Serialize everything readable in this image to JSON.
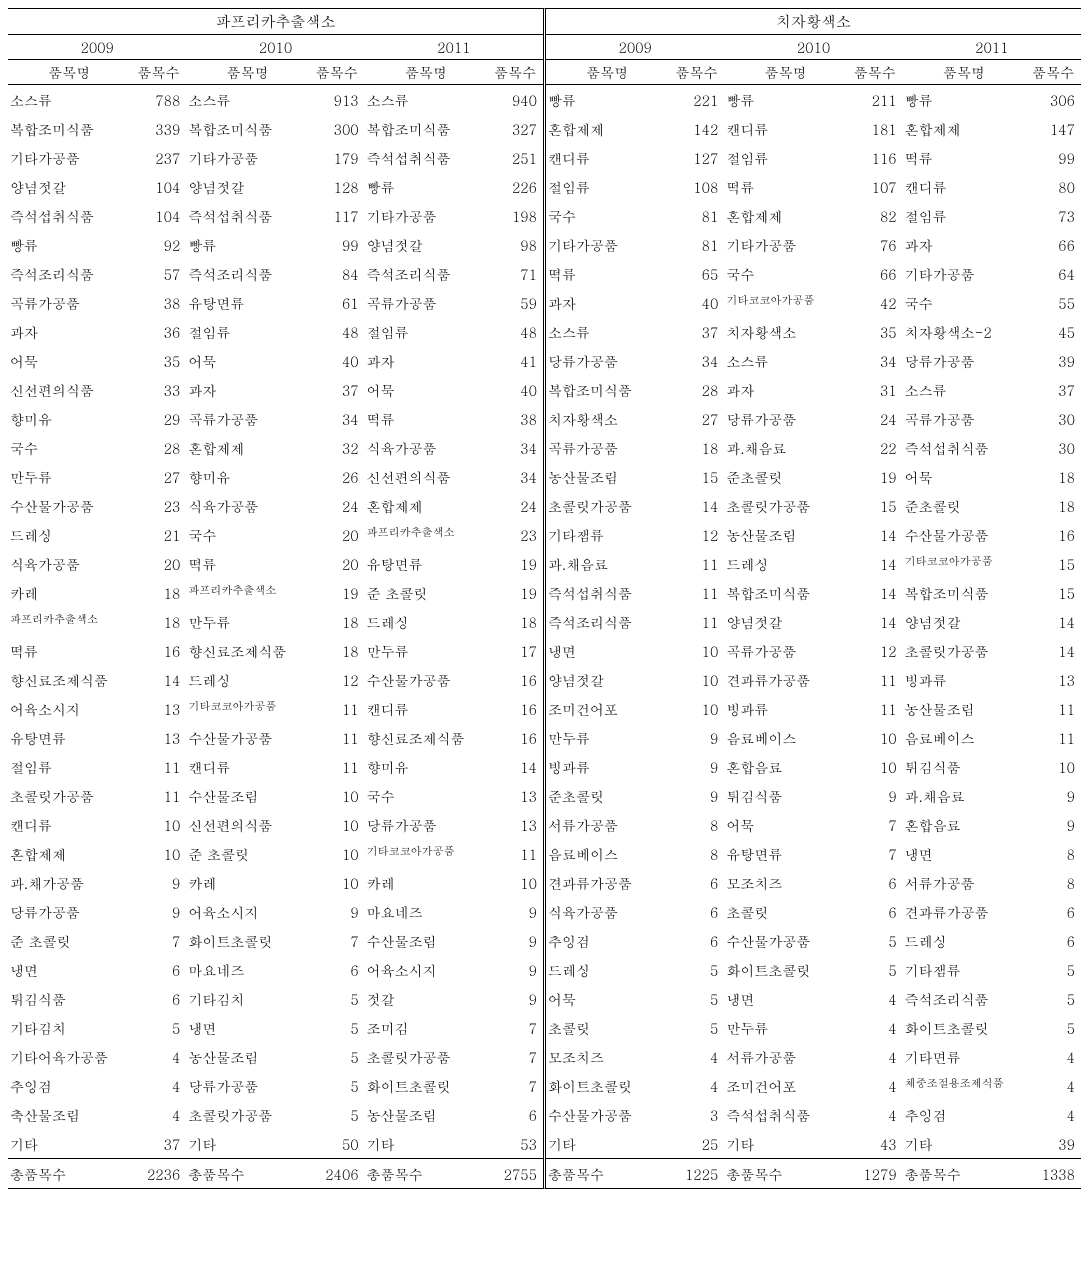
{
  "sections": [
    {
      "title": "파프리카추출색소",
      "years": [
        "2009",
        "2010",
        "2011"
      ],
      "column_headers": {
        "name": "품목명",
        "count": "품목수"
      },
      "rows": [
        [
          {
            "name": "소스류",
            "count": 788
          },
          {
            "name": "소스류",
            "count": 913
          },
          {
            "name": "소스류",
            "count": 940
          }
        ],
        [
          {
            "name": "복합조미식품",
            "count": 339
          },
          {
            "name": "복합조미식품",
            "count": 300
          },
          {
            "name": "복합조미식품",
            "count": 327
          }
        ],
        [
          {
            "name": "기타가공품",
            "count": 237
          },
          {
            "name": "기타가공품",
            "count": 179
          },
          {
            "name": "즉석섭취식품",
            "count": 251
          }
        ],
        [
          {
            "name": "양념젓갈",
            "count": 104
          },
          {
            "name": "양념젓갈",
            "count": 128
          },
          {
            "name": "빵류",
            "count": 226
          }
        ],
        [
          {
            "name": "즉석섭취식품",
            "count": 104
          },
          {
            "name": "즉석섭취식품",
            "count": 117
          },
          {
            "name": "기타가공품",
            "count": 198
          }
        ],
        [
          {
            "name": "빵류",
            "count": 92
          },
          {
            "name": "빵류",
            "count": 99
          },
          {
            "name": "양념젓갈",
            "count": 98
          }
        ],
        [
          {
            "name": "즉석조리식품",
            "count": 57
          },
          {
            "name": "즉석조리식품",
            "count": 84
          },
          {
            "name": "즉석조리식품",
            "count": 71
          }
        ],
        [
          {
            "name": "곡류가공품",
            "count": 38
          },
          {
            "name": "유탕면류",
            "count": 61
          },
          {
            "name": "곡류가공품",
            "count": 59
          }
        ],
        [
          {
            "name": "과자",
            "count": 36
          },
          {
            "name": "절임류",
            "count": 48
          },
          {
            "name": "절임류",
            "count": 48
          }
        ],
        [
          {
            "name": "어묵",
            "count": 35
          },
          {
            "name": "어묵",
            "count": 40
          },
          {
            "name": "과자",
            "count": 41
          }
        ],
        [
          {
            "name": "신선편의식품",
            "count": 33
          },
          {
            "name": "과자",
            "count": 37
          },
          {
            "name": "어묵",
            "count": 40
          }
        ],
        [
          {
            "name": "향미유",
            "count": 29
          },
          {
            "name": "곡류가공품",
            "count": 34
          },
          {
            "name": "떡류",
            "count": 38
          }
        ],
        [
          {
            "name": "국수",
            "count": 28
          },
          {
            "name": "혼합제제",
            "count": 32
          },
          {
            "name": "식육가공품",
            "count": 34
          }
        ],
        [
          {
            "name": "만두류",
            "count": 27
          },
          {
            "name": "향미유",
            "count": 26
          },
          {
            "name": "신선편의식품",
            "count": 34
          }
        ],
        [
          {
            "name": "수산물가공품",
            "count": 23
          },
          {
            "name": "식육가공품",
            "count": 24
          },
          {
            "name": "혼합제제",
            "count": 24
          }
        ],
        [
          {
            "name": "드레싱",
            "count": 21
          },
          {
            "name": "국수",
            "count": 20
          },
          {
            "name": "파프리카추출색소",
            "count": 23,
            "small": true
          }
        ],
        [
          {
            "name": "식육가공품",
            "count": 20
          },
          {
            "name": "떡류",
            "count": 20
          },
          {
            "name": "유탕면류",
            "count": 19
          }
        ],
        [
          {
            "name": "카레",
            "count": 18
          },
          {
            "name": "파프리카추출색소",
            "count": 19,
            "small": true
          },
          {
            "name": "준 초콜릿",
            "count": 19
          }
        ],
        [
          {
            "name": "파프리카추출색소",
            "count": 18,
            "small": true
          },
          {
            "name": "만두류",
            "count": 18
          },
          {
            "name": "드레싱",
            "count": 18
          }
        ],
        [
          {
            "name": "떡류",
            "count": 16
          },
          {
            "name": "향신료조제식품",
            "count": 18
          },
          {
            "name": "만두류",
            "count": 17
          }
        ],
        [
          {
            "name": "향신료조제식품",
            "count": 14
          },
          {
            "name": "드레싱",
            "count": 12
          },
          {
            "name": "수산물가공품",
            "count": 16
          }
        ],
        [
          {
            "name": "어육소시지",
            "count": 13
          },
          {
            "name": "기타코코아가공품",
            "count": 11,
            "small": true
          },
          {
            "name": "캔디류",
            "count": 16
          }
        ],
        [
          {
            "name": "유탕면류",
            "count": 13
          },
          {
            "name": "수산물가공품",
            "count": 11
          },
          {
            "name": "향신료조제식품",
            "count": 16
          }
        ],
        [
          {
            "name": "절임류",
            "count": 11
          },
          {
            "name": "캔디류",
            "count": 11
          },
          {
            "name": "향미유",
            "count": 14
          }
        ],
        [
          {
            "name": "초콜릿가공품",
            "count": 11
          },
          {
            "name": "수산물조림",
            "count": 10
          },
          {
            "name": "국수",
            "count": 13
          }
        ],
        [
          {
            "name": "캔디류",
            "count": 10
          },
          {
            "name": "신선편의식품",
            "count": 10
          },
          {
            "name": "당류가공품",
            "count": 13
          }
        ],
        [
          {
            "name": "혼합제제",
            "count": 10
          },
          {
            "name": "준 초콜릿",
            "count": 10
          },
          {
            "name": "기타코코아가공품",
            "count": 11,
            "small": true
          }
        ],
        [
          {
            "name": "과.채가공품",
            "count": 9
          },
          {
            "name": "카레",
            "count": 10
          },
          {
            "name": "카레",
            "count": 10
          }
        ],
        [
          {
            "name": "당류가공품",
            "count": 9
          },
          {
            "name": "어육소시지",
            "count": 9
          },
          {
            "name": "마요네즈",
            "count": 9
          }
        ],
        [
          {
            "name": "준 초콜릿",
            "count": 7
          },
          {
            "name": "화이트초콜릿",
            "count": 7
          },
          {
            "name": "수산물조림",
            "count": 9
          }
        ],
        [
          {
            "name": "냉면",
            "count": 6
          },
          {
            "name": "마요네즈",
            "count": 6
          },
          {
            "name": "어육소시지",
            "count": 9
          }
        ],
        [
          {
            "name": "튀김식품",
            "count": 6
          },
          {
            "name": "기타김치",
            "count": 5
          },
          {
            "name": "젓갈",
            "count": 9
          }
        ],
        [
          {
            "name": "기타김치",
            "count": 5
          },
          {
            "name": "냉면",
            "count": 5
          },
          {
            "name": "조미김",
            "count": 7
          }
        ],
        [
          {
            "name": "기타어육가공품",
            "count": 4
          },
          {
            "name": "농산물조림",
            "count": 5
          },
          {
            "name": "초콜릿가공품",
            "count": 7
          }
        ],
        [
          {
            "name": "추잉검",
            "count": 4
          },
          {
            "name": "당류가공품",
            "count": 5
          },
          {
            "name": "화이트초콜릿",
            "count": 7
          }
        ],
        [
          {
            "name": "축산물조림",
            "count": 4
          },
          {
            "name": "초콜릿가공품",
            "count": 5
          },
          {
            "name": "농산물조림",
            "count": 6
          }
        ],
        [
          {
            "name": "기타",
            "count": 37
          },
          {
            "name": "기타",
            "count": 50
          },
          {
            "name": "기타",
            "count": 53
          }
        ]
      ],
      "total": [
        {
          "name": "총품목수",
          "count": 2236
        },
        {
          "name": "총품목수",
          "count": 2406
        },
        {
          "name": "총품목수",
          "count": 2755
        }
      ]
    },
    {
      "title": "치자황색소",
      "years": [
        "2009",
        "2010",
        "2011"
      ],
      "column_headers": {
        "name": "품목명",
        "count": "품목수"
      },
      "rows": [
        [
          {
            "name": "빵류",
            "count": 221
          },
          {
            "name": "빵류",
            "count": 211
          },
          {
            "name": "빵류",
            "count": 306
          }
        ],
        [
          {
            "name": "혼합제제",
            "count": 142
          },
          {
            "name": "캔디류",
            "count": 181
          },
          {
            "name": "혼합제제",
            "count": 147
          }
        ],
        [
          {
            "name": "캔디류",
            "count": 127
          },
          {
            "name": "절임류",
            "count": 116
          },
          {
            "name": "떡류",
            "count": 99
          }
        ],
        [
          {
            "name": "절임류",
            "count": 108
          },
          {
            "name": "떡류",
            "count": 107
          },
          {
            "name": "캔디류",
            "count": 80
          }
        ],
        [
          {
            "name": "국수",
            "count": 81
          },
          {
            "name": "혼합제제",
            "count": 82
          },
          {
            "name": "절임류",
            "count": 73
          }
        ],
        [
          {
            "name": "기타가공품",
            "count": 81
          },
          {
            "name": "기타가공품",
            "count": 76
          },
          {
            "name": "과자",
            "count": 66
          }
        ],
        [
          {
            "name": "떡류",
            "count": 65
          },
          {
            "name": "국수",
            "count": 66
          },
          {
            "name": "기타가공품",
            "count": 64
          }
        ],
        [
          {
            "name": "과자",
            "count": 40
          },
          {
            "name": "기타코코아가공품",
            "count": 42,
            "small": true
          },
          {
            "name": "국수",
            "count": 55
          }
        ],
        [
          {
            "name": "소스류",
            "count": 37
          },
          {
            "name": "치자황색소",
            "count": 35
          },
          {
            "name": "치자황색소-2",
            "count": 45
          }
        ],
        [
          {
            "name": "당류가공품",
            "count": 34
          },
          {
            "name": "소스류",
            "count": 34
          },
          {
            "name": "당류가공품",
            "count": 39
          }
        ],
        [
          {
            "name": "복합조미식품",
            "count": 28
          },
          {
            "name": "과자",
            "count": 31
          },
          {
            "name": "소스류",
            "count": 37
          }
        ],
        [
          {
            "name": "치자황색소",
            "count": 27
          },
          {
            "name": "당류가공품",
            "count": 24
          },
          {
            "name": "곡류가공품",
            "count": 30
          }
        ],
        [
          {
            "name": "곡류가공품",
            "count": 18
          },
          {
            "name": "과.채음료",
            "count": 22
          },
          {
            "name": "즉석섭취식품",
            "count": 30
          }
        ],
        [
          {
            "name": "농산물조림",
            "count": 15
          },
          {
            "name": "준초콜릿",
            "count": 19
          },
          {
            "name": "어묵",
            "count": 18
          }
        ],
        [
          {
            "name": "초콜릿가공품",
            "count": 14
          },
          {
            "name": "초콜릿가공품",
            "count": 15
          },
          {
            "name": "준초콜릿",
            "count": 18
          }
        ],
        [
          {
            "name": "기타잼류",
            "count": 12
          },
          {
            "name": "농산물조림",
            "count": 14
          },
          {
            "name": "수산물가공품",
            "count": 16
          }
        ],
        [
          {
            "name": "과.채음료",
            "count": 11
          },
          {
            "name": "드레싱",
            "count": 14
          },
          {
            "name": "기타코코아가공품",
            "count": 15,
            "small": true
          }
        ],
        [
          {
            "name": "즉석섭취식품",
            "count": 11
          },
          {
            "name": "복합조미식품",
            "count": 14
          },
          {
            "name": "복합조미식품",
            "count": 15
          }
        ],
        [
          {
            "name": "즉석조리식품",
            "count": 11
          },
          {
            "name": "양념젓갈",
            "count": 14
          },
          {
            "name": "양념젓갈",
            "count": 14
          }
        ],
        [
          {
            "name": "냉면",
            "count": 10
          },
          {
            "name": "곡류가공품",
            "count": 12
          },
          {
            "name": "초콜릿가공품",
            "count": 14
          }
        ],
        [
          {
            "name": "양념젓갈",
            "count": 10
          },
          {
            "name": "견과류가공품",
            "count": 11
          },
          {
            "name": "빙과류",
            "count": 13
          }
        ],
        [
          {
            "name": "조미건어포",
            "count": 10
          },
          {
            "name": "빙과류",
            "count": 11
          },
          {
            "name": "농산물조림",
            "count": 11
          }
        ],
        [
          {
            "name": "만두류",
            "count": 9
          },
          {
            "name": "음료베이스",
            "count": 10
          },
          {
            "name": "음료베이스",
            "count": 11
          }
        ],
        [
          {
            "name": "빙과류",
            "count": 9
          },
          {
            "name": "혼합음료",
            "count": 10
          },
          {
            "name": "튀김식품",
            "count": 10
          }
        ],
        [
          {
            "name": "준초콜릿",
            "count": 9
          },
          {
            "name": "튀김식품",
            "count": 9
          },
          {
            "name": "과.채음료",
            "count": 9
          }
        ],
        [
          {
            "name": "서류가공품",
            "count": 8
          },
          {
            "name": "어묵",
            "count": 7
          },
          {
            "name": "혼합음료",
            "count": 9
          }
        ],
        [
          {
            "name": "음료베이스",
            "count": 8
          },
          {
            "name": "유탕면류",
            "count": 7
          },
          {
            "name": "냉면",
            "count": 8
          }
        ],
        [
          {
            "name": "견과류가공품",
            "count": 6
          },
          {
            "name": "모조치즈",
            "count": 6
          },
          {
            "name": "서류가공품",
            "count": 8
          }
        ],
        [
          {
            "name": "식육가공품",
            "count": 6
          },
          {
            "name": "초콜릿",
            "count": 6
          },
          {
            "name": "견과류가공품",
            "count": 6
          }
        ],
        [
          {
            "name": "추잉검",
            "count": 6
          },
          {
            "name": "수산물가공품",
            "count": 5
          },
          {
            "name": "드레싱",
            "count": 6
          }
        ],
        [
          {
            "name": "드레싱",
            "count": 5
          },
          {
            "name": "화이트초콜릿",
            "count": 5
          },
          {
            "name": "기타잼류",
            "count": 5
          }
        ],
        [
          {
            "name": "어묵",
            "count": 5
          },
          {
            "name": "냉면",
            "count": 4
          },
          {
            "name": "즉석조리식품",
            "count": 5
          }
        ],
        [
          {
            "name": "초콜릿",
            "count": 5
          },
          {
            "name": "만두류",
            "count": 4
          },
          {
            "name": "화이트초콜릿",
            "count": 5
          }
        ],
        [
          {
            "name": "모조치즈",
            "count": 4
          },
          {
            "name": "서류가공품",
            "count": 4
          },
          {
            "name": "기타면류",
            "count": 4
          }
        ],
        [
          {
            "name": "화이트초콜릿",
            "count": 4
          },
          {
            "name": "조미건어포",
            "count": 4
          },
          {
            "name": "체중조절용조제식품",
            "count": 4,
            "small": true
          }
        ],
        [
          {
            "name": "수산물가공품",
            "count": 3
          },
          {
            "name": "즉석섭취식품",
            "count": 4
          },
          {
            "name": "추잉검",
            "count": 4
          }
        ],
        [
          {
            "name": "기타",
            "count": 25
          },
          {
            "name": "기타",
            "count": 43
          },
          {
            "name": "기타",
            "count": 39
          }
        ]
      ],
      "total": [
        {
          "name": "총품목수",
          "count": 1225
        },
        {
          "name": "총품목수",
          "count": 1279
        },
        {
          "name": "총품목수",
          "count": 1338
        }
      ]
    }
  ]
}
